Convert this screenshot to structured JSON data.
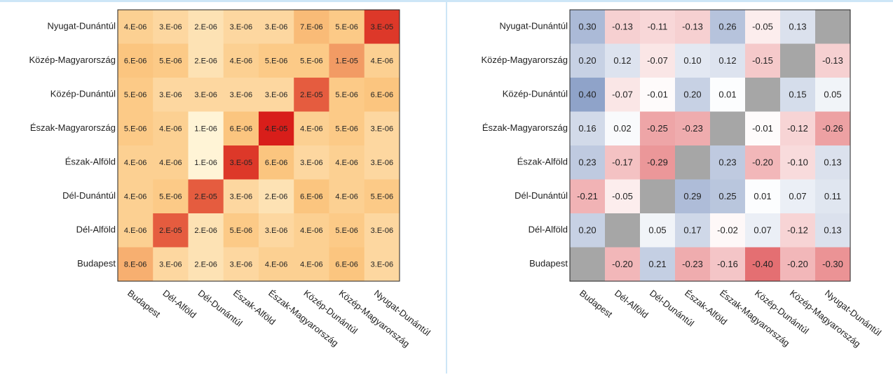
{
  "chart_data": [
    {
      "type": "heatmap",
      "color_scale": "log",
      "colors": [
        "#fff4d6",
        "#fbc47c",
        "#d81e1a"
      ],
      "null_color": "#a6a6a6",
      "rows": [
        "Nyugat-Dunántúl",
        "Közép-Magyarország",
        "Közép-Dunántúl",
        "Észak-Magyarország",
        "Észak-Alföld",
        "Dél-Dunántúl",
        "Dél-Alföld",
        "Budapest"
      ],
      "columns": [
        "Budapest",
        "Dél-Alföld",
        "Dél-Dunántúl",
        "Észak-Alföld",
        "Észak-Magyarország",
        "Közép-Dunántúl",
        "Közép-Magyarország",
        "Nyugat-Dunántúl"
      ],
      "values": [
        [
          4e-06,
          3e-06,
          2e-06,
          3e-06,
          3e-06,
          7e-06,
          5e-06,
          3e-05
        ],
        [
          6e-06,
          5e-06,
          2e-06,
          4e-06,
          5e-06,
          5e-06,
          1e-05,
          4e-06
        ],
        [
          5e-06,
          3e-06,
          3e-06,
          3e-06,
          3e-06,
          2e-05,
          5e-06,
          6e-06
        ],
        [
          5e-06,
          4e-06,
          1e-06,
          6e-06,
          4e-05,
          4e-06,
          5e-06,
          3e-06
        ],
        [
          4e-06,
          4e-06,
          1e-06,
          3e-05,
          6e-06,
          3e-06,
          4e-06,
          3e-06
        ],
        [
          4e-06,
          5e-06,
          2e-05,
          3e-06,
          2e-06,
          6e-06,
          4e-06,
          5e-06
        ],
        [
          4e-06,
          2e-05,
          2e-06,
          5e-06,
          3e-06,
          4e-06,
          5e-06,
          3e-06
        ],
        [
          8e-06,
          3e-06,
          2e-06,
          3e-06,
          4e-06,
          4e-06,
          6e-06,
          3e-06
        ]
      ],
      "value_labels": [
        [
          "4.E-06",
          "3.E-06",
          "2.E-06",
          "3.E-06",
          "3.E-06",
          "7.E-06",
          "5.E-06",
          "3.E-05"
        ],
        [
          "6.E-06",
          "5.E-06",
          "2.E-06",
          "4.E-06",
          "5.E-06",
          "5.E-06",
          "1.E-05",
          "4.E-06"
        ],
        [
          "5.E-06",
          "3.E-06",
          "3.E-06",
          "3.E-06",
          "3.E-06",
          "2.E-05",
          "5.E-06",
          "6.E-06"
        ],
        [
          "5.E-06",
          "4.E-06",
          "1.E-06",
          "6.E-06",
          "4.E-05",
          "4.E-06",
          "5.E-06",
          "3.E-06"
        ],
        [
          "4.E-06",
          "4.E-06",
          "1.E-06",
          "3.E-05",
          "6.E-06",
          "3.E-06",
          "4.E-06",
          "3.E-06"
        ],
        [
          "4.E-06",
          "5.E-06",
          "2.E-05",
          "3.E-06",
          "2.E-06",
          "6.E-06",
          "4.E-06",
          "5.E-06"
        ],
        [
          "4.E-06",
          "2.E-05",
          "2.E-06",
          "5.E-06",
          "3.E-06",
          "4.E-06",
          "5.E-06",
          "3.E-06"
        ],
        [
          "8.E-06",
          "3.E-06",
          "2.E-06",
          "3.E-06",
          "4.E-06",
          "4.E-06",
          "6.E-06",
          "3.E-06"
        ]
      ]
    },
    {
      "type": "heatmap",
      "color_scale": "diverging",
      "colors": [
        "#e46f72",
        "#ffffff",
        "#8fa3c9"
      ],
      "null_color": "#a6a6a6",
      "rows": [
        "Nyugat-Dunántúl",
        "Közép-Magyarország",
        "Közép-Dunántúl",
        "Észak-Magyarország",
        "Észak-Alföld",
        "Dél-Dunántúl",
        "Dél-Alföld",
        "Budapest"
      ],
      "columns": [
        "Budapest",
        "Dél-Alföld",
        "Dél-Dunántúl",
        "Észak-Alföld",
        "Észak-Magyarország",
        "Közép-Dunántúl",
        "Közép-Magyarország",
        "Nyugat-Dunántúl"
      ],
      "values": [
        [
          0.3,
          -0.13,
          -0.11,
          -0.13,
          0.26,
          -0.05,
          0.13,
          null
        ],
        [
          0.2,
          0.12,
          -0.07,
          0.1,
          0.12,
          -0.15,
          null,
          -0.13
        ],
        [
          0.4,
          -0.07,
          -0.01,
          0.2,
          0.01,
          null,
          0.15,
          0.05
        ],
        [
          0.16,
          0.02,
          -0.25,
          -0.23,
          null,
          -0.01,
          -0.12,
          -0.26
        ],
        [
          0.23,
          -0.17,
          -0.29,
          null,
          0.23,
          -0.2,
          -0.1,
          0.13
        ],
        [
          -0.21,
          -0.05,
          null,
          0.29,
          0.25,
          0.01,
          0.07,
          0.11
        ],
        [
          0.2,
          null,
          0.05,
          0.17,
          -0.02,
          0.07,
          -0.12,
          0.13
        ],
        [
          null,
          -0.2,
          0.21,
          -0.23,
          -0.16,
          -0.4,
          -0.2,
          -0.3
        ]
      ],
      "value_labels": [
        [
          "0.30",
          "-0.13",
          "-0.11",
          "-0.13",
          "0.26",
          "-0.05",
          "0.13",
          null
        ],
        [
          "0.20",
          "0.12",
          "-0.07",
          "0.10",
          "0.12",
          "-0.15",
          null,
          "-0.13"
        ],
        [
          "0.40",
          "-0.07",
          "-0.01",
          "0.20",
          "0.01",
          null,
          "0.15",
          "0.05"
        ],
        [
          "0.16",
          "0.02",
          "-0.25",
          "-0.23",
          null,
          "-0.01",
          "-0.12",
          "-0.26"
        ],
        [
          "0.23",
          "-0.17",
          "-0.29",
          null,
          "0.23",
          "-0.20",
          "-0.10",
          "0.13"
        ],
        [
          "-0.21",
          "-0.05",
          null,
          "0.29",
          "0.25",
          "0.01",
          "0.07",
          "0.11"
        ],
        [
          "0.20",
          null,
          "0.05",
          "0.17",
          "-0.02",
          "0.07",
          "-0.12",
          "0.13"
        ],
        [
          null,
          "-0.20",
          "0.21",
          "-0.23",
          "-0.16",
          "-0.40",
          "-0.20",
          "-0.30"
        ]
      ]
    }
  ]
}
